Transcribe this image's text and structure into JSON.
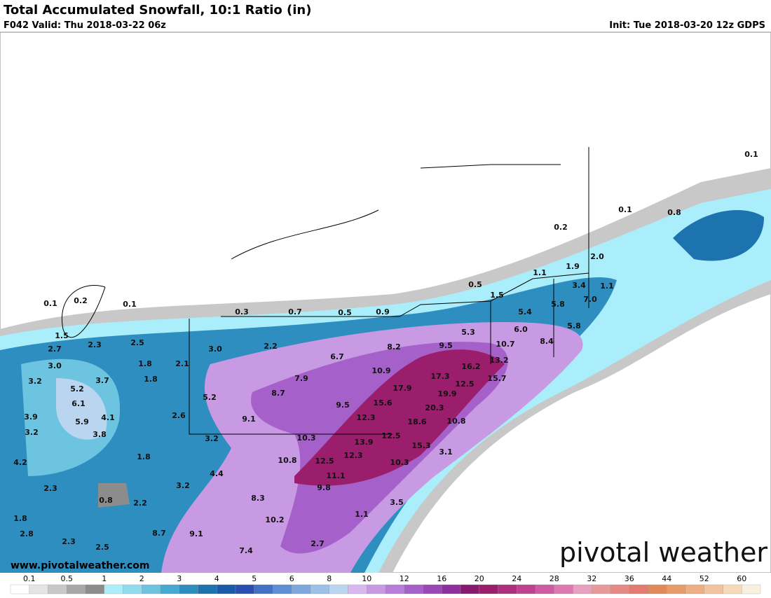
{
  "header": {
    "title": "Total Accumulated Snowfall, 10:1 Ratio (in)",
    "valid": "F042 Valid: Thu 2018-03-22 06z",
    "init": "Init: Tue 2018-03-20 12z GDPS"
  },
  "map_labels": [
    "0.1",
    "0.1",
    "0.8",
    "0.2",
    "2.0",
    "1.9",
    "1.1",
    "0.5",
    "1.5",
    "3.4",
    "1.1",
    "7.0",
    "5.4",
    "5.8",
    "0.1",
    "0.2",
    "0.1",
    "0.3",
    "0.7",
    "0.5",
    "0.9",
    "5.3",
    "6.0",
    "5.8",
    "1.5",
    "2.7",
    "2.3",
    "2.5",
    "3.0",
    "2.2",
    "8.2",
    "9.5",
    "10.7",
    "8.4",
    "3.0",
    "1.8",
    "2.1",
    "6.7",
    "10.9",
    "17.3",
    "16.2",
    "13.2",
    "3.2",
    "3.7",
    "1.8",
    "5.2",
    "7.9",
    "17.9",
    "12.5",
    "15.7",
    "6.1",
    "5.2",
    "8.7",
    "9.5",
    "15.6",
    "19.9",
    "3.9",
    "5.9",
    "4.1",
    "2.6",
    "9.1",
    "12.3",
    "20.3",
    "18.6",
    "10.8",
    "3.2",
    "3.8",
    "3.2",
    "10.3",
    "12.5",
    "15.3",
    "13.9",
    "4.2",
    "1.8",
    "10.8",
    "12.5",
    "12.3",
    "10.3",
    "3.1",
    "4.4",
    "11.1",
    "2.3",
    "3.2",
    "9.8",
    "0.8",
    "2.2",
    "8.3",
    "3.5",
    "1.8",
    "10.2",
    "1.1",
    "2.8",
    "8.7",
    "9.1",
    "2.3",
    "2.5",
    "2.7",
    "7.4"
  ],
  "legend": {
    "labels": [
      "0.1",
      "0.5",
      "1",
      "2",
      "3",
      "4",
      "5",
      "6",
      "8",
      "10",
      "12",
      "16",
      "20",
      "24",
      "28",
      "32",
      "36",
      "44",
      "52",
      "60"
    ],
    "colors": [
      "#ffffff",
      "#e4e4e4",
      "#c8c8c8",
      "#a8a8a8",
      "#8c8c8c",
      "#a9eefa",
      "#8fdcee",
      "#6cc4e0",
      "#46a9cf",
      "#2f8ec0",
      "#1c73ae",
      "#1a5aa8",
      "#2a4fb3",
      "#4272c4",
      "#5d8fd4",
      "#7ca8dd",
      "#9cc0e6",
      "#bad5ef",
      "#d8b8ee",
      "#c89ae4",
      "#b67ed8",
      "#a560c9",
      "#9a47b8",
      "#8d2f9f",
      "#861a6e",
      "#9a1e6c",
      "#ad2f7e",
      "#bf4190",
      "#cf5aa1",
      "#dc79b1",
      "#e8a0c0",
      "#e89a9a",
      "#e68a86",
      "#e47a70",
      "#e2895a",
      "#e79a6a",
      "#ecae82",
      "#f0c49c",
      "#f5d9b9",
      "#faf0e0"
    ]
  },
  "website": "www.pivotalweather.com",
  "brand": "pivotal weather"
}
